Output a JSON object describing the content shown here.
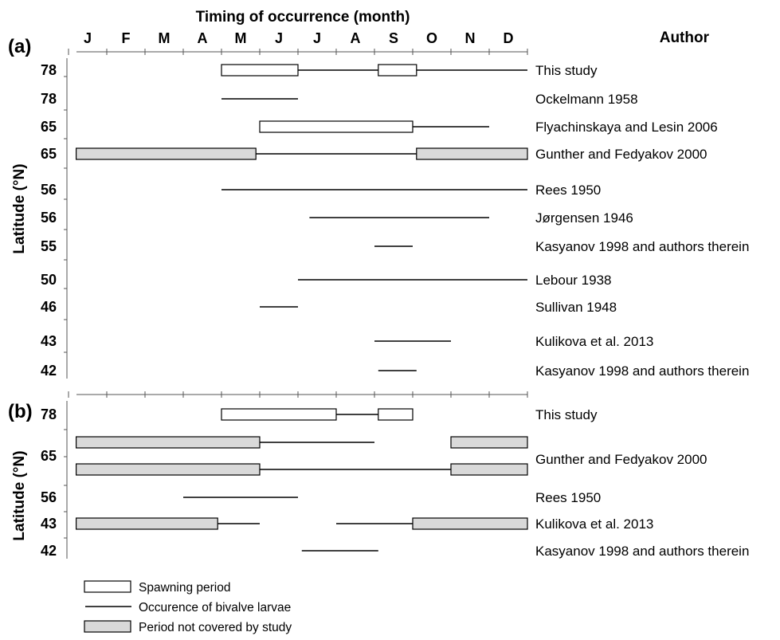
{
  "chart_data": {
    "type": "gantt",
    "title": "Timing of occurrence (month)",
    "author_header": "Author",
    "months": [
      "J",
      "F",
      "M",
      "A",
      "M",
      "J",
      "J",
      "A",
      "S",
      "O",
      "N",
      "D"
    ],
    "ylabel": "Latitude (°N)",
    "colors": {
      "spawning": "#ffffff",
      "not_covered": "#d9d9d9",
      "line": "#000000"
    },
    "panels": [
      {
        "label": "(a)",
        "rows": [
          {
            "lat": "78",
            "author": "This study",
            "spawning": [
              [
                4.0,
                6.0
              ],
              [
                8.1,
                9.1
              ]
            ],
            "larvae": [
              [
                6.0,
                8.1
              ],
              [
                9.1,
                12.0
              ]
            ],
            "not_covered": []
          },
          {
            "lat": "78",
            "author": "Ockelmann 1958",
            "spawning": [],
            "larvae": [
              [
                4.0,
                6.0
              ]
            ],
            "not_covered": []
          },
          {
            "lat": "65",
            "author": "Flyachinskaya and Lesin 2006",
            "spawning": [
              [
                5.0,
                9.0
              ]
            ],
            "larvae": [
              [
                9.0,
                11.0
              ]
            ],
            "not_covered": []
          },
          {
            "lat": "65",
            "author": "Gunther and Fedyakov 2000",
            "spawning": [],
            "larvae": [
              [
                4.9,
                9.1
              ]
            ],
            "not_covered": [
              [
                0.2,
                4.9
              ],
              [
                9.1,
                12.0
              ]
            ]
          },
          {
            "lat": "56",
            "author": "Rees 1950",
            "spawning": [],
            "larvae": [
              [
                4.0,
                12.0
              ]
            ],
            "not_covered": []
          },
          {
            "lat": "56",
            "author": "Jørgensen 1946",
            "spawning": [],
            "larvae": [
              [
                6.3,
                11.0
              ]
            ],
            "not_covered": []
          },
          {
            "lat": "55",
            "author": "Kasyanov 1998 and authors therein",
            "spawning": [],
            "larvae": [
              [
                8.0,
                9.0
              ]
            ],
            "not_covered": []
          },
          {
            "lat": "50",
            "author": "Lebour 1938",
            "spawning": [],
            "larvae": [
              [
                6.0,
                12.0
              ]
            ],
            "not_covered": []
          },
          {
            "lat": "46",
            "author": "Sullivan 1948",
            "spawning": [],
            "larvae": [
              [
                5.0,
                6.0
              ]
            ],
            "not_covered": []
          },
          {
            "lat": "43",
            "author": "Kulikova et al. 2013",
            "spawning": [],
            "larvae": [
              [
                8.0,
                10.0
              ]
            ],
            "not_covered": []
          },
          {
            "lat": "42",
            "author": "Kasyanov 1998 and authors therein",
            "spawning": [],
            "larvae": [
              [
                8.1,
                9.1
              ]
            ],
            "not_covered": []
          }
        ]
      },
      {
        "label": "(b)",
        "rows": [
          {
            "lat": "78",
            "author": "This study",
            "spawning": [
              [
                4.0,
                7.0
              ],
              [
                8.1,
                9.0
              ]
            ],
            "larvae": [
              [
                7.0,
                8.1
              ]
            ],
            "not_covered": []
          },
          {
            "lat": "",
            "author": "",
            "spawning": [],
            "larvae": [
              [
                5.0,
                8.0
              ]
            ],
            "not_covered": [
              [
                0.2,
                5.0
              ],
              [
                10.0,
                12.0
              ]
            ]
          },
          {
            "lat": "65",
            "author": "Gunther and Fedyakov 2000",
            "spawning": [],
            "larvae": [
              [
                5.0,
                10.0
              ]
            ],
            "not_covered": [
              [
                0.2,
                5.0
              ],
              [
                10.0,
                12.0
              ]
            ]
          },
          {
            "lat": "56",
            "author": "Rees 1950",
            "spawning": [],
            "larvae": [
              [
                3.0,
                6.0
              ]
            ],
            "not_covered": []
          },
          {
            "lat": "43",
            "author": "Kulikova et al. 2013",
            "spawning": [],
            "larvae": [
              [
                3.9,
                5.0
              ],
              [
                7.0,
                9.0
              ]
            ],
            "not_covered": [
              [
                0.2,
                3.9
              ],
              [
                9.0,
                12.0
              ]
            ]
          },
          {
            "lat": "42",
            "author": "Kasyanov 1998 and authors therein",
            "spawning": [],
            "larvae": [
              [
                6.1,
                8.1
              ]
            ],
            "not_covered": []
          }
        ]
      }
    ],
    "legend": [
      {
        "key": "spawning",
        "label": "Spawning period"
      },
      {
        "key": "larvae",
        "label": "Occurence of bivalve larvae"
      },
      {
        "key": "not_covered",
        "label": "Period not covered by study"
      }
    ]
  }
}
